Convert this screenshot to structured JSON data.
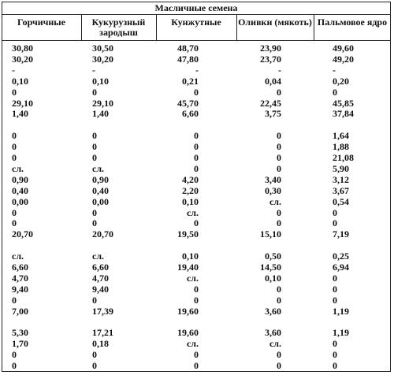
{
  "table": {
    "title": "Масличные семена",
    "columns": [
      "Горчичные",
      "Кукурузный зародыш",
      "Кунжутные",
      "Оливки (мякоть)",
      "Пальмовое ядро"
    ],
    "groups": [
      [
        [
          "30,80",
          "30,50",
          "48,70",
          "23,90",
          "49,60"
        ],
        [
          "30,20",
          "30,20",
          "47,80",
          "23,70",
          "49,20"
        ],
        [
          "-",
          "-",
          "-",
          "-",
          "-"
        ],
        [
          "0,10",
          "0,10",
          "0,21",
          "0,04",
          "0,20"
        ],
        [
          "0",
          "0",
          "0",
          "0",
          "0"
        ],
        [
          "29,10",
          "29,10",
          "45,70",
          "22,45",
          "45,85"
        ],
        [
          "1,40",
          "1,40",
          "6,60",
          "3,75",
          "37,84"
        ]
      ],
      [
        [
          "0",
          "0",
          "0",
          "0",
          "1,64"
        ],
        [
          "0",
          "0",
          "0",
          "0",
          "1,88"
        ],
        [
          "0",
          "0",
          "0",
          "0",
          "21,08"
        ],
        [
          "сл.",
          "сл.",
          "0",
          "0",
          "5,90"
        ],
        [
          "0,90",
          "0,90",
          "4,20",
          "3,40",
          "3,12"
        ],
        [
          "0,40",
          "0,40",
          "2,20",
          "0,30",
          "3,67"
        ],
        [
          "0,00",
          "0,00",
          "0,10",
          "сл.",
          "0,54"
        ],
        [
          "0",
          "0",
          "сл.",
          "0",
          "0"
        ],
        [
          "0",
          "0",
          "0",
          "0",
          "0"
        ],
        [
          "20,70",
          "20,70",
          "19,50",
          "15,10",
          "7,19"
        ]
      ],
      [
        [
          "сл.",
          "сл.",
          "0,10",
          "0,50",
          "0,25"
        ],
        [
          "6,60",
          "6,60",
          "19,40",
          "14,50",
          "6,94"
        ],
        [
          "4,70",
          "4,70",
          "сл.",
          "0,10",
          "0"
        ],
        [
          "9,40",
          "9,40",
          "0",
          "0",
          "0"
        ],
        [
          "0",
          "0",
          "0",
          "0",
          "0"
        ],
        [
          "7,00",
          "17,39",
          "19,60",
          "3,60",
          "1,19"
        ]
      ],
      [
        [
          "5,30",
          "17,21",
          "19,60",
          "3,60",
          "1,19"
        ],
        [
          "1,70",
          "0,18",
          "сл.",
          "сл.",
          "0"
        ],
        [
          "0",
          "0",
          "0",
          "0",
          "0"
        ],
        [
          "0",
          "0",
          "0",
          "0",
          "0"
        ]
      ]
    ]
  }
}
